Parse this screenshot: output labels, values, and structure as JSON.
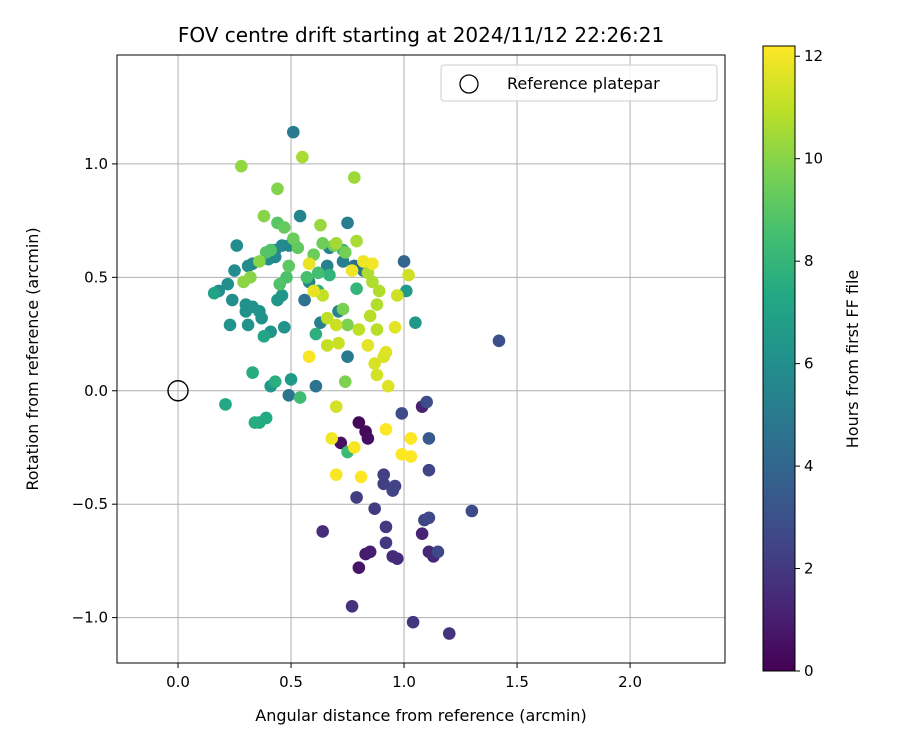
{
  "chart_data": {
    "type": "scatter",
    "title": "FOV centre drift starting at 2024/11/12 22:26:21",
    "xlabel": "Angular distance from reference (arcmin)",
    "ylabel": "Rotation from reference (arcmin)",
    "xlim": [
      -0.27,
      2.42
    ],
    "ylim": [
      -1.2,
      1.48
    ],
    "xticks": [
      0.0,
      0.5,
      1.0,
      1.5,
      2.0
    ],
    "xtick_labels": [
      "0.0",
      "0.5",
      "1.0",
      "1.5",
      "2.0"
    ],
    "yticks": [
      -1.0,
      -0.5,
      0.0,
      0.5,
      1.0
    ],
    "ytick_labels": [
      "−1.0",
      "−0.5",
      "0.0",
      "0.5",
      "1.0"
    ],
    "grid": true,
    "legend": {
      "position": "top-right",
      "entries": [
        "Reference platepar"
      ]
    },
    "colorbar": {
      "label": "Hours from first FF file",
      "colormap": "viridis",
      "range": [
        0,
        12.2
      ],
      "ticks": [
        0,
        2,
        4,
        6,
        8,
        10,
        12
      ],
      "tick_labels": [
        "0",
        "2",
        "4",
        "6",
        "8",
        "10",
        "12"
      ]
    },
    "reference_point": {
      "x": 0.0,
      "y": 0.0
    },
    "points": [
      {
        "x": 0.8,
        "y": -0.14,
        "h": 0.2
      },
      {
        "x": 0.83,
        "y": -0.18,
        "h": 0.3
      },
      {
        "x": 0.84,
        "y": -0.21,
        "h": 0.4
      },
      {
        "x": 0.72,
        "y": -0.23,
        "h": 0.5
      },
      {
        "x": 0.8,
        "y": -0.78,
        "h": 0.7
      },
      {
        "x": 0.83,
        "y": -0.72,
        "h": 0.9
      },
      {
        "x": 0.85,
        "y": -0.71,
        "h": 1.0
      },
      {
        "x": 1.08,
        "y": -0.07,
        "h": 1.1
      },
      {
        "x": 1.08,
        "y": -0.63,
        "h": 1.2
      },
      {
        "x": 1.11,
        "y": -0.71,
        "h": 1.3
      },
      {
        "x": 1.13,
        "y": -0.73,
        "h": 1.4
      },
      {
        "x": 0.95,
        "y": -0.73,
        "h": 1.5
      },
      {
        "x": 0.97,
        "y": -0.74,
        "h": 1.5
      },
      {
        "x": 0.64,
        "y": -0.62,
        "h": 1.6
      },
      {
        "x": 0.77,
        "y": -0.95,
        "h": 1.7
      },
      {
        "x": 1.2,
        "y": -1.07,
        "h": 1.8
      },
      {
        "x": 1.04,
        "y": -1.02,
        "h": 1.9
      },
      {
        "x": 0.92,
        "y": -0.6,
        "h": 2.0
      },
      {
        "x": 0.92,
        "y": -0.67,
        "h": 2.0
      },
      {
        "x": 0.87,
        "y": -0.52,
        "h": 2.1
      },
      {
        "x": 0.79,
        "y": -0.47,
        "h": 2.2
      },
      {
        "x": 0.91,
        "y": -0.37,
        "h": 2.3
      },
      {
        "x": 0.91,
        "y": -0.41,
        "h": 2.3
      },
      {
        "x": 0.96,
        "y": -0.42,
        "h": 2.4
      },
      {
        "x": 0.95,
        "y": -0.44,
        "h": 2.4
      },
      {
        "x": 1.11,
        "y": -0.35,
        "h": 2.5
      },
      {
        "x": 1.09,
        "y": -0.57,
        "h": 2.5
      },
      {
        "x": 1.11,
        "y": -0.56,
        "h": 2.6
      },
      {
        "x": 1.15,
        "y": -0.71,
        "h": 2.6
      },
      {
        "x": 1.3,
        "y": -0.53,
        "h": 2.7
      },
      {
        "x": 0.99,
        "y": -0.1,
        "h": 2.8
      },
      {
        "x": 1.1,
        "y": -0.05,
        "h": 2.9
      },
      {
        "x": 1.42,
        "y": 0.22,
        "h": 3.0
      },
      {
        "x": 1.11,
        "y": -0.21,
        "h": 3.4
      },
      {
        "x": 1.0,
        "y": 0.57,
        "h": 4.0
      },
      {
        "x": 0.78,
        "y": 0.55,
        "h": 4.5
      },
      {
        "x": 0.82,
        "y": 0.53,
        "h": 4.6
      },
      {
        "x": 0.56,
        "y": 0.4,
        "h": 4.6
      },
      {
        "x": 0.61,
        "y": 0.02,
        "h": 4.7
      },
      {
        "x": 0.49,
        "y": -0.02,
        "h": 4.7
      },
      {
        "x": 0.51,
        "y": 1.14,
        "h": 5.0
      },
      {
        "x": 0.75,
        "y": 0.15,
        "h": 5.0
      },
      {
        "x": 0.75,
        "y": 0.74,
        "h": 5.1
      },
      {
        "x": 0.73,
        "y": 0.57,
        "h": 5.2
      },
      {
        "x": 0.66,
        "y": 0.55,
        "h": 5.3
      },
      {
        "x": 0.63,
        "y": 0.3,
        "h": 5.3
      },
      {
        "x": 0.71,
        "y": 0.35,
        "h": 5.4
      },
      {
        "x": 0.67,
        "y": 0.63,
        "h": 5.4
      },
      {
        "x": 0.58,
        "y": 0.48,
        "h": 5.5
      },
      {
        "x": 0.54,
        "y": 0.77,
        "h": 5.5
      },
      {
        "x": 0.51,
        "y": 0.66,
        "h": 5.6
      },
      {
        "x": 0.49,
        "y": 0.64,
        "h": 5.6
      },
      {
        "x": 0.46,
        "y": 0.64,
        "h": 5.7
      },
      {
        "x": 0.43,
        "y": 0.62,
        "h": 5.7
      },
      {
        "x": 0.43,
        "y": 0.59,
        "h": 5.7
      },
      {
        "x": 0.4,
        "y": 0.58,
        "h": 5.8
      },
      {
        "x": 0.33,
        "y": 0.56,
        "h": 5.8
      },
      {
        "x": 0.31,
        "y": 0.55,
        "h": 5.8
      },
      {
        "x": 0.26,
        "y": 0.64,
        "h": 5.9
      },
      {
        "x": 0.25,
        "y": 0.53,
        "h": 5.9
      },
      {
        "x": 0.22,
        "y": 0.47,
        "h": 6.0
      },
      {
        "x": 0.18,
        "y": 0.44,
        "h": 6.0
      },
      {
        "x": 0.24,
        "y": 0.4,
        "h": 6.0
      },
      {
        "x": 0.3,
        "y": 0.38,
        "h": 6.1
      },
      {
        "x": 0.3,
        "y": 0.35,
        "h": 6.1
      },
      {
        "x": 0.33,
        "y": 0.37,
        "h": 6.1
      },
      {
        "x": 0.36,
        "y": 0.35,
        "h": 6.2
      },
      {
        "x": 0.37,
        "y": 0.32,
        "h": 6.2
      },
      {
        "x": 0.31,
        "y": 0.29,
        "h": 6.2
      },
      {
        "x": 0.23,
        "y": 0.29,
        "h": 6.3
      },
      {
        "x": 0.41,
        "y": 0.26,
        "h": 6.3
      },
      {
        "x": 0.47,
        "y": 0.28,
        "h": 6.3
      },
      {
        "x": 0.46,
        "y": 0.42,
        "h": 6.4
      },
      {
        "x": 0.44,
        "y": 0.4,
        "h": 6.4
      },
      {
        "x": 0.41,
        "y": 0.02,
        "h": 6.4
      },
      {
        "x": 0.5,
        "y": 0.05,
        "h": 6.5
      },
      {
        "x": 1.05,
        "y": 0.3,
        "h": 6.5
      },
      {
        "x": 1.01,
        "y": 0.44,
        "h": 6.6
      },
      {
        "x": 0.16,
        "y": 0.43,
        "h": 7.0
      },
      {
        "x": 0.38,
        "y": 0.24,
        "h": 7.2
      },
      {
        "x": 0.21,
        "y": -0.06,
        "h": 7.3
      },
      {
        "x": 0.39,
        "y": -0.12,
        "h": 7.4
      },
      {
        "x": 0.36,
        "y": -0.14,
        "h": 7.4
      },
      {
        "x": 0.34,
        "y": -0.14,
        "h": 7.5
      },
      {
        "x": 0.33,
        "y": 0.08,
        "h": 7.5
      },
      {
        "x": 0.43,
        "y": 0.04,
        "h": 7.6
      },
      {
        "x": 0.61,
        "y": 0.25,
        "h": 7.7
      },
      {
        "x": 0.62,
        "y": 0.44,
        "h": 7.8
      },
      {
        "x": 0.67,
        "y": 0.51,
        "h": 7.9
      },
      {
        "x": 0.73,
        "y": 0.62,
        "h": 8.0
      },
      {
        "x": 0.79,
        "y": 0.45,
        "h": 8.0
      },
      {
        "x": 0.75,
        "y": -0.27,
        "h": 8.2
      },
      {
        "x": 0.54,
        "y": -0.03,
        "h": 8.4
      },
      {
        "x": 0.62,
        "y": 0.52,
        "h": 8.5
      },
      {
        "x": 0.57,
        "y": 0.5,
        "h": 8.6
      },
      {
        "x": 0.48,
        "y": 0.5,
        "h": 8.7
      },
      {
        "x": 0.45,
        "y": 0.47,
        "h": 8.8
      },
      {
        "x": 0.41,
        "y": 0.62,
        "h": 8.8
      },
      {
        "x": 0.39,
        "y": 0.61,
        "h": 8.9
      },
      {
        "x": 0.44,
        "y": 0.74,
        "h": 9.0
      },
      {
        "x": 0.49,
        "y": 0.55,
        "h": 9.1
      },
      {
        "x": 0.53,
        "y": 0.63,
        "h": 9.2
      },
      {
        "x": 0.47,
        "y": 0.72,
        "h": 9.3
      },
      {
        "x": 0.51,
        "y": 0.67,
        "h": 9.4
      },
      {
        "x": 0.6,
        "y": 0.6,
        "h": 9.4
      },
      {
        "x": 0.64,
        "y": 0.65,
        "h": 9.5
      },
      {
        "x": 0.69,
        "y": 0.64,
        "h": 9.6
      },
      {
        "x": 0.74,
        "y": 0.61,
        "h": 9.6
      },
      {
        "x": 0.73,
        "y": 0.36,
        "h": 9.7
      },
      {
        "x": 0.74,
        "y": 0.04,
        "h": 9.8
      },
      {
        "x": 0.75,
        "y": 0.29,
        "h": 9.8
      },
      {
        "x": 0.44,
        "y": 0.89,
        "h": 9.9
      },
      {
        "x": 0.38,
        "y": 0.77,
        "h": 10.0
      },
      {
        "x": 0.36,
        "y": 0.57,
        "h": 10.0
      },
      {
        "x": 0.32,
        "y": 0.5,
        "h": 10.0
      },
      {
        "x": 0.29,
        "y": 0.48,
        "h": 10.1
      },
      {
        "x": 0.28,
        "y": 0.99,
        "h": 10.2
      },
      {
        "x": 0.63,
        "y": 0.73,
        "h": 10.3
      },
      {
        "x": 0.78,
        "y": 0.94,
        "h": 10.4
      },
      {
        "x": 0.55,
        "y": 1.03,
        "h": 10.6
      },
      {
        "x": 0.7,
        "y": 0.65,
        "h": 10.5
      },
      {
        "x": 0.79,
        "y": 0.66,
        "h": 10.6
      },
      {
        "x": 0.84,
        "y": 0.52,
        "h": 10.7
      },
      {
        "x": 0.86,
        "y": 0.48,
        "h": 10.7
      },
      {
        "x": 0.89,
        "y": 0.44,
        "h": 10.8
      },
      {
        "x": 0.88,
        "y": 0.38,
        "h": 10.8
      },
      {
        "x": 0.85,
        "y": 0.33,
        "h": 10.9
      },
      {
        "x": 0.88,
        "y": 0.27,
        "h": 10.9
      },
      {
        "x": 0.8,
        "y": 0.27,
        "h": 11.0
      },
      {
        "x": 0.66,
        "y": 0.32,
        "h": 11.0
      },
      {
        "x": 0.64,
        "y": 0.42,
        "h": 11.1
      },
      {
        "x": 0.66,
        "y": 0.2,
        "h": 11.1
      },
      {
        "x": 0.71,
        "y": 0.21,
        "h": 11.2
      },
      {
        "x": 0.7,
        "y": 0.29,
        "h": 11.2
      },
      {
        "x": 0.97,
        "y": 0.42,
        "h": 11.3
      },
      {
        "x": 1.02,
        "y": 0.51,
        "h": 11.3
      },
      {
        "x": 0.7,
        "y": -0.07,
        "h": 11.4
      },
      {
        "x": 0.88,
        "y": 0.07,
        "h": 11.4
      },
      {
        "x": 0.87,
        "y": 0.12,
        "h": 11.5
      },
      {
        "x": 0.91,
        "y": 0.15,
        "h": 11.5
      },
      {
        "x": 0.92,
        "y": 0.17,
        "h": 11.6
      },
      {
        "x": 0.93,
        "y": 0.02,
        "h": 11.6
      },
      {
        "x": 0.84,
        "y": 0.2,
        "h": 11.7
      },
      {
        "x": 0.96,
        "y": 0.28,
        "h": 11.7
      },
      {
        "x": 0.58,
        "y": 0.56,
        "h": 11.8
      },
      {
        "x": 0.6,
        "y": 0.44,
        "h": 11.8
      },
      {
        "x": 0.77,
        "y": 0.53,
        "h": 11.9
      },
      {
        "x": 0.82,
        "y": 0.57,
        "h": 11.9
      },
      {
        "x": 0.86,
        "y": 0.56,
        "h": 12.0
      },
      {
        "x": 0.68,
        "y": -0.21,
        "h": 12.0
      },
      {
        "x": 0.78,
        "y": -0.25,
        "h": 12.1
      },
      {
        "x": 0.7,
        "y": -0.37,
        "h": 12.1
      },
      {
        "x": 0.81,
        "y": -0.38,
        "h": 12.2
      },
      {
        "x": 0.92,
        "y": -0.17,
        "h": 12.2
      },
      {
        "x": 0.99,
        "y": -0.28,
        "h": 12.2
      },
      {
        "x": 1.03,
        "y": -0.29,
        "h": 12.2
      },
      {
        "x": 1.03,
        "y": -0.21,
        "h": 12.2
      },
      {
        "x": 0.58,
        "y": 0.15,
        "h": 12.1
      }
    ]
  }
}
